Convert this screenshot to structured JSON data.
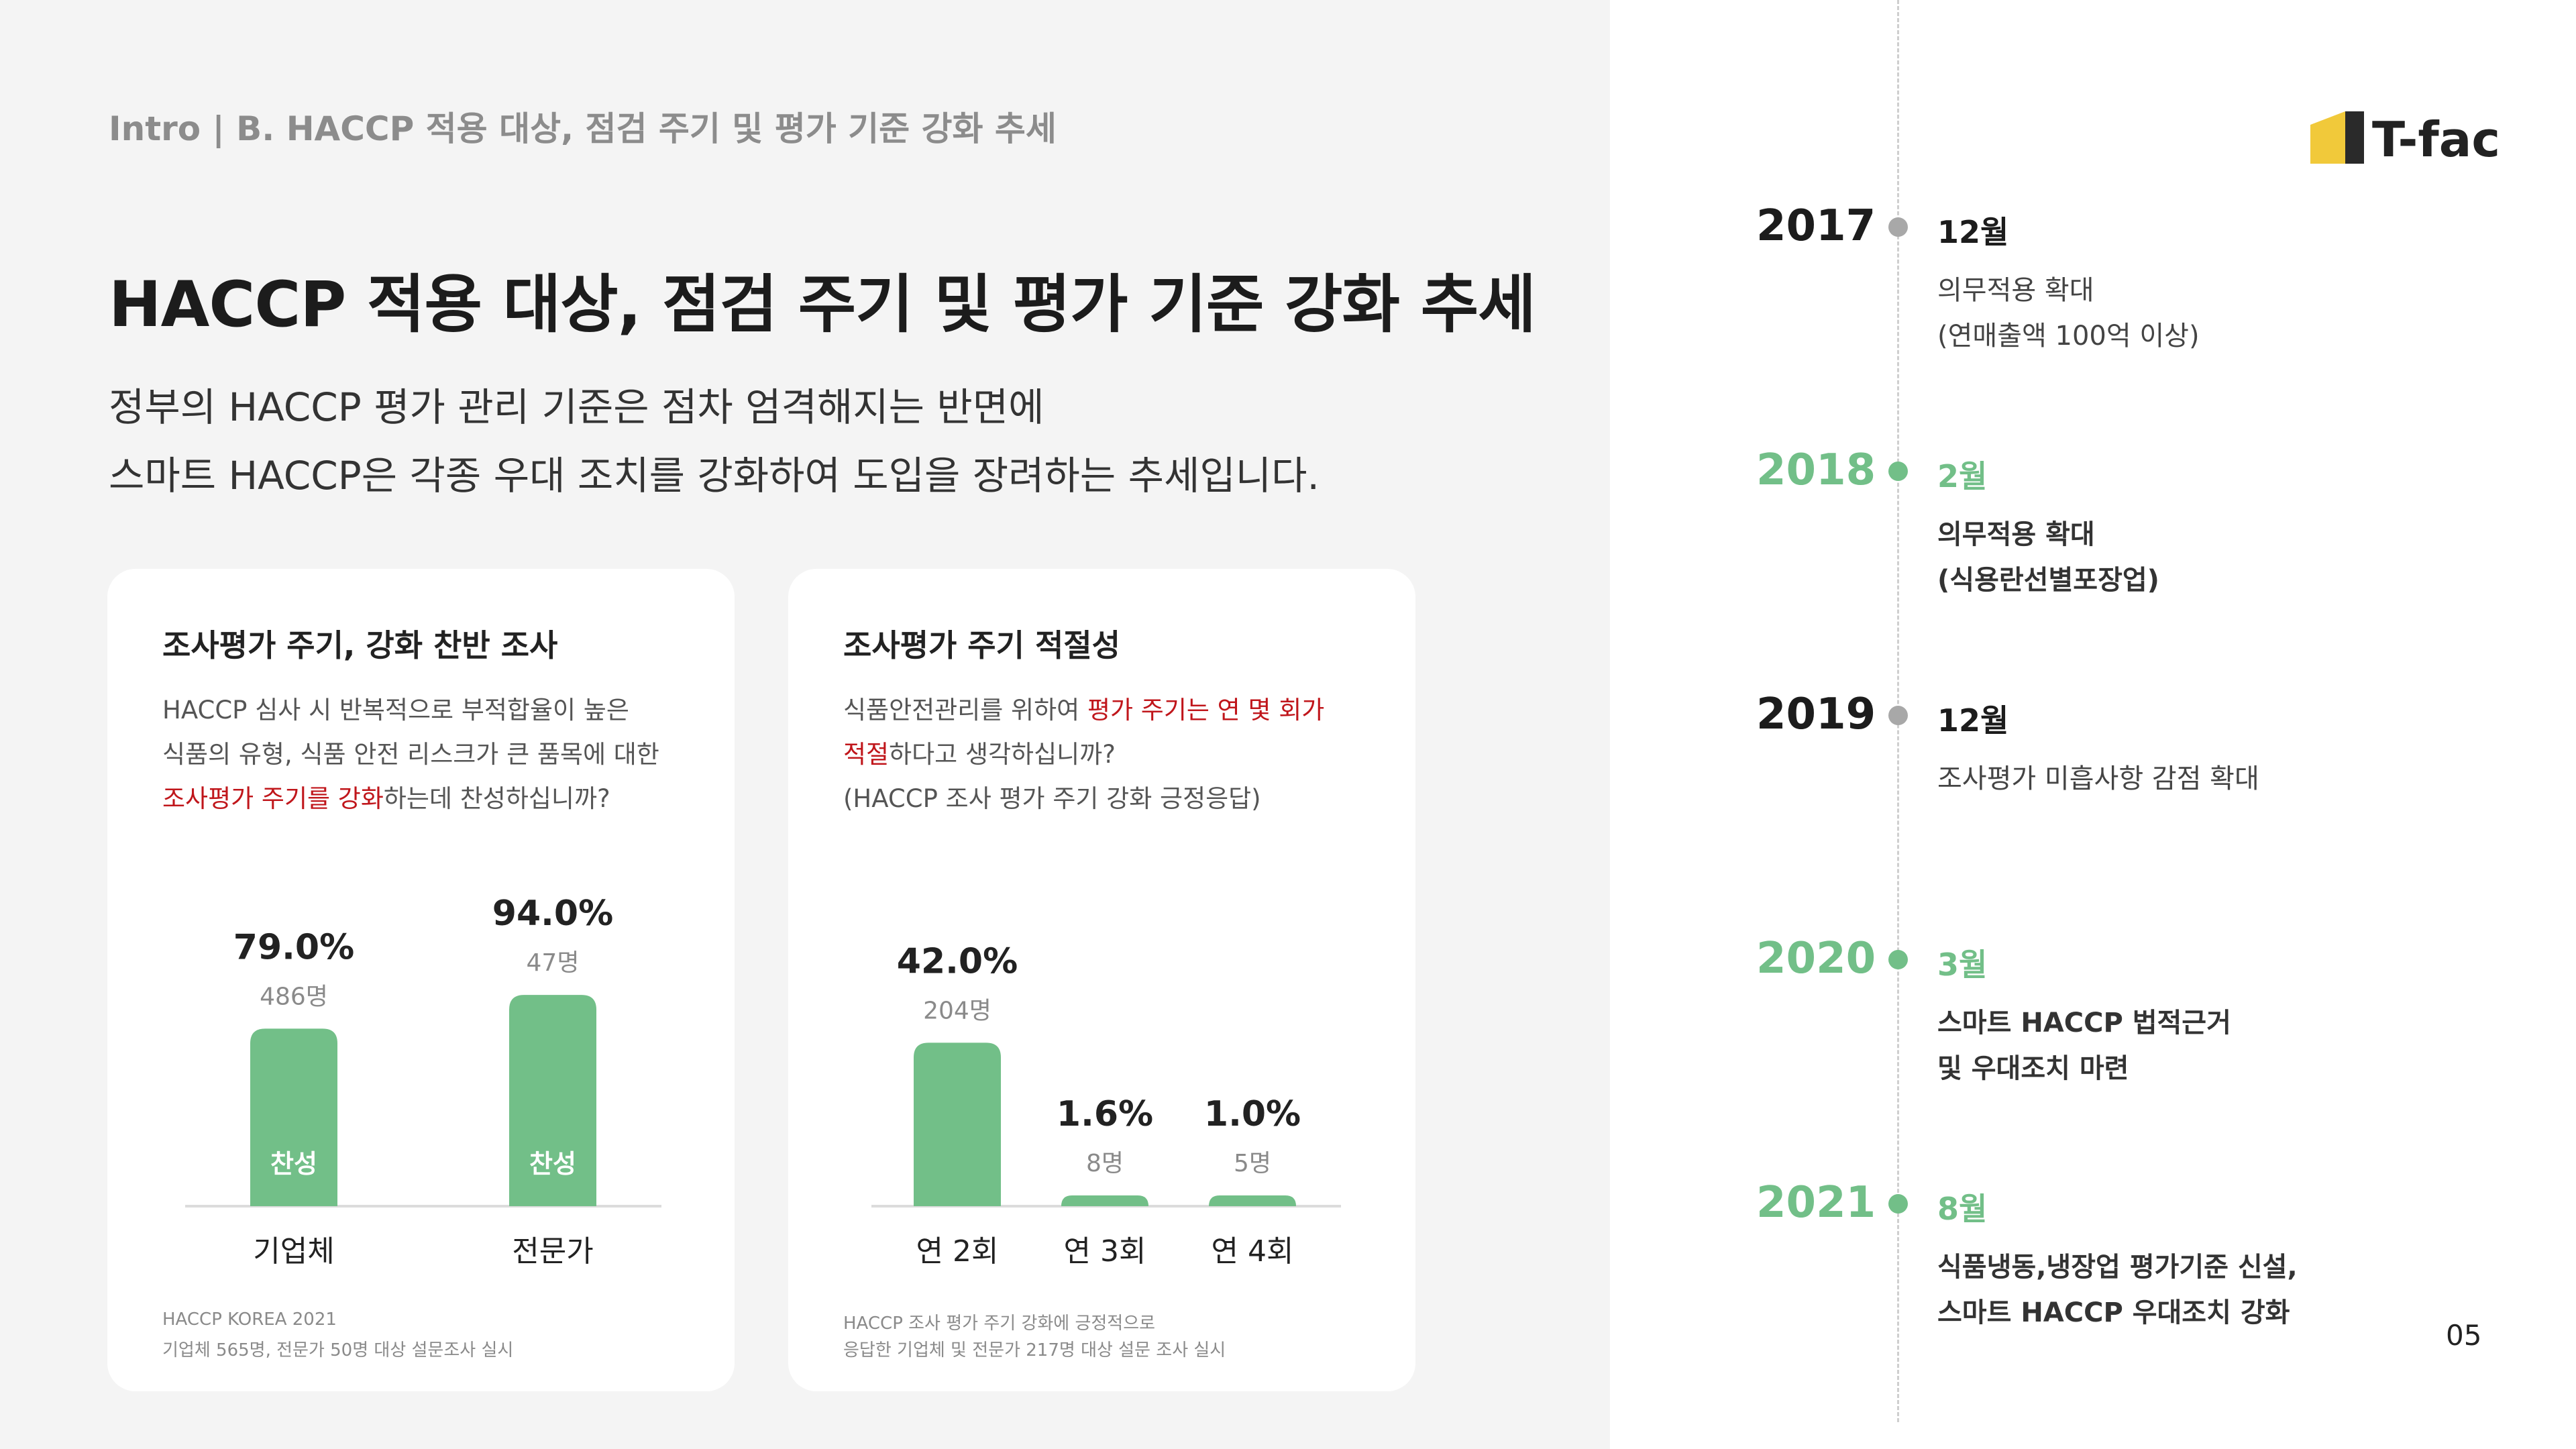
{
  "header": {
    "breadcrumb": "Intro | B. HACCP 적용 대상, 점검 주기 및 평가 기준  강화 추세",
    "title": "HACCP 적용 대상, 점검 주기 및 평가 기준 강화 추세",
    "subtitle_line1": "정부의 HACCP 평가 관리 기준은 점차 엄격해지는 반면에",
    "subtitle_line2": "스마트 HACCP은 각종 우대 조치를 강화하여  도입을 장려하는 추세입니다."
  },
  "card1": {
    "title": "조사평가 주기, 강화 찬반 조사",
    "q_line1": "HACCP 심사 시 반복적으로 부적합율이 높은",
    "q_line2": "식품의 유형, 식품 안전 리스크가 큰 품목에 대한",
    "q_line3_red": "조사평가 주기를 강화",
    "q_line3_rest": "하는데 찬성하십니까?",
    "source_line1": "HACCP KOREA 2021",
    "source_line2": "기업체 565명, 전문가 50명 대상 설문조사 실시"
  },
  "card2": {
    "title": "조사평가 주기 적절성",
    "q_line1_plain": "식품안전관리를 위하여 ",
    "q_line1_red": "평가 주기는 연 몇 회가",
    "q_line2_red": "적절",
    "q_line2_rest": "하다고 생각하십니까?",
    "q_line3": "(HACCP 조사 평가 주기 강화 긍정응답)",
    "source_line1": "HACCP 조사 평가 주기 강화에 긍정적으로",
    "source_line2": "응답한 기업체 및 전문가 217명 대상 설문 조사 실시"
  },
  "chart_data": [
    {
      "type": "bar",
      "title": "조사평가 주기, 강화 찬반 조사",
      "categories": [
        "기업체",
        "전문가"
      ],
      "values": [
        79.0,
        94.0
      ],
      "value_labels": [
        "79.0%",
        "94.0%"
      ],
      "counts": [
        "486명",
        "47명"
      ],
      "bar_labels": [
        "찬성",
        "찬성"
      ],
      "ylim": [
        0,
        100
      ],
      "bar_color": "#72bf88"
    },
    {
      "type": "bar",
      "title": "조사평가 주기 적절성",
      "categories": [
        "연 2회",
        "연 3회",
        "연 4회"
      ],
      "values": [
        42.0,
        1.6,
        1.0
      ],
      "value_labels": [
        "42.0%",
        "1.6%",
        "1.0%"
      ],
      "counts": [
        "204명",
        "8명",
        "5명"
      ],
      "ylim": [
        0,
        100
      ],
      "bar_color": "#72bf88"
    }
  ],
  "timeline": [
    {
      "year": "2017",
      "month": "12월",
      "desc1": "의무적용 확대",
      "desc2": "(연매출액 100억 이상)",
      "highlight": false
    },
    {
      "year": "2018",
      "month": "2월",
      "desc1": "의무적용 확대",
      "desc2": "(식용란선별포장업)",
      "highlight": true
    },
    {
      "year": "2019",
      "month": "12월",
      "desc1": "조사평가 미흡사항 감점 확대",
      "desc2": "",
      "highlight": false
    },
    {
      "year": "2020",
      "month": "3월",
      "desc1": "스마트 HACCP 법적근거",
      "desc2": "및 우대조치 마련",
      "highlight": true
    },
    {
      "year": "2021",
      "month": "8월",
      "desc1": "식품냉동,냉장업 평가기준 신설,",
      "desc2": "스마트 HACCP 우대조치 강화",
      "highlight": true
    }
  ],
  "colors": {
    "accent_green": "#72bf88",
    "muted_gray": "#a8a8a8",
    "red": "#c0161b",
    "logo_yellow": "#f1c93a"
  },
  "brand": {
    "logo_text": "T-fac"
  },
  "page_number": "05"
}
